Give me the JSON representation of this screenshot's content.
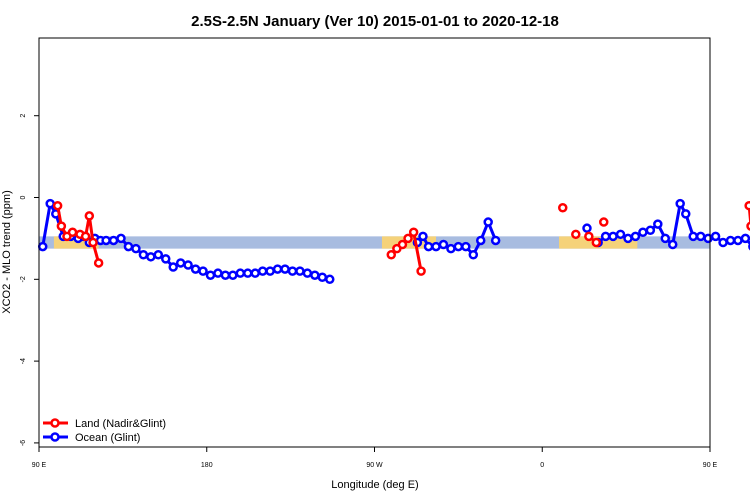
{
  "chart_data": {
    "type": "line",
    "title": "2.5S-2.5N January (Ver 10)   2015-01-01 to 2020-12-18",
    "xlabel": "Longitude (deg E)",
    "ylabel": "XCO2 - MLO trend (ppm)",
    "xlim": [
      90,
      450
    ],
    "ylim": [
      -6.1,
      3.9
    ],
    "x_ticks": [
      {
        "value": 90,
        "label": "90 E"
      },
      {
        "value": 180,
        "label": "180"
      },
      {
        "value": 270,
        "label": "90 W"
      },
      {
        "value": 360,
        "label": "0"
      },
      {
        "value": 450,
        "label": "90 E"
      },
      {
        "value": 540,
        "label": "180"
      }
    ],
    "y_ticks": [
      {
        "value": -6,
        "label": "-6"
      },
      {
        "value": -4,
        "label": "-4"
      },
      {
        "value": -2,
        "label": "-2"
      },
      {
        "value": 0,
        "label": "0"
      },
      {
        "value": 2,
        "label": "2"
      }
    ],
    "legend": {
      "position": "bottom-left",
      "entries": [
        {
          "label": "Land (Nadir&Glint)",
          "color": "#ff0000"
        },
        {
          "label": "Ocean (Glint)",
          "color": "#0000ff"
        }
      ]
    },
    "background_band": {
      "y_range": [
        -1.25,
        -0.95
      ],
      "ocean_color": "#a8bce0",
      "land_color": "#f5d27a",
      "land_ranges": [
        [
          98,
          122
        ],
        [
          274,
          303
        ],
        [
          369,
          411
        ],
        [
          474,
          489
        ]
      ]
    },
    "series": [
      {
        "name": "Land (Nadir&Glint)",
        "color": "#ff0000",
        "segments": [
          [
            [
              100,
              -0.2
            ],
            [
              102,
              -0.7
            ],
            [
              105,
              -0.95
            ],
            [
              108,
              -0.85
            ],
            [
              112,
              -0.9
            ],
            [
              115,
              -0.95
            ],
            [
              117,
              -0.45
            ],
            [
              119,
              -1.1
            ],
            [
              122,
              -1.6
            ]
          ],
          [
            [
              279,
              -1.4
            ],
            [
              282,
              -1.25
            ],
            [
              285,
              -1.15
            ],
            [
              288,
              -1.0
            ],
            [
              291,
              -0.85
            ],
            [
              295,
              -1.8
            ]
          ],
          [
            [
              371,
              -0.25
            ]
          ],
          [
            [
              378,
              -0.9
            ]
          ],
          [
            [
              385,
              -0.95
            ],
            [
              389,
              -1.1
            ]
          ],
          [
            [
              393,
              -0.6
            ]
          ],
          [
            [
              471,
              -0.2
            ],
            [
              472,
              -0.7
            ],
            [
              475,
              -0.95
            ],
            [
              479,
              -0.85
            ],
            [
              483,
              -0.9
            ],
            [
              485,
              -0.95
            ],
            [
              486,
              -0.45
            ],
            [
              488,
              -1.1
            ],
            [
              490,
              -1.6
            ]
          ]
        ]
      },
      {
        "name": "Ocean (Glint)",
        "color": "#0000ff",
        "segments": [
          [
            [
              92,
              -1.2
            ],
            [
              96,
              -0.15
            ],
            [
              99,
              -0.4
            ],
            [
              103,
              -0.95
            ],
            [
              107,
              -0.95
            ],
            [
              111,
              -1.0
            ],
            [
              114,
              -0.95
            ],
            [
              117,
              -1.1
            ],
            [
              120,
              -1.0
            ],
            [
              123,
              -1.05
            ],
            [
              126,
              -1.05
            ],
            [
              130,
              -1.05
            ],
            [
              134,
              -1.0
            ],
            [
              138,
              -1.2
            ],
            [
              142,
              -1.25
            ],
            [
              146,
              -1.4
            ],
            [
              150,
              -1.45
            ],
            [
              154,
              -1.4
            ],
            [
              158,
              -1.5
            ],
            [
              162,
              -1.7
            ],
            [
              166,
              -1.6
            ],
            [
              170,
              -1.65
            ],
            [
              174,
              -1.75
            ],
            [
              178,
              -1.8
            ],
            [
              182,
              -1.9
            ],
            [
              186,
              -1.85
            ],
            [
              190,
              -1.9
            ],
            [
              194,
              -1.9
            ],
            [
              198,
              -1.85
            ],
            [
              202,
              -1.85
            ],
            [
              206,
              -1.85
            ],
            [
              210,
              -1.8
            ],
            [
              214,
              -1.8
            ],
            [
              218,
              -1.75
            ],
            [
              222,
              -1.75
            ],
            [
              226,
              -1.8
            ],
            [
              230,
              -1.8
            ],
            [
              234,
              -1.85
            ],
            [
              238,
              -1.9
            ],
            [
              242,
              -1.95
            ],
            [
              246,
              -2.0
            ]
          ],
          [
            [
              293,
              -1.1
            ],
            [
              296,
              -0.95
            ],
            [
              299,
              -1.2
            ],
            [
              303,
              -1.2
            ],
            [
              307,
              -1.15
            ],
            [
              311,
              -1.25
            ],
            [
              315,
              -1.2
            ],
            [
              319,
              -1.2
            ],
            [
              323,
              -1.4
            ],
            [
              327,
              -1.05
            ],
            [
              331,
              -0.6
            ],
            [
              335,
              -1.05
            ]
          ],
          [
            [
              384,
              -0.75
            ]
          ],
          [
            [
              390,
              -1.1
            ],
            [
              394,
              -0.95
            ],
            [
              398,
              -0.95
            ],
            [
              402,
              -0.9
            ],
            [
              406,
              -1.0
            ],
            [
              410,
              -0.95
            ],
            [
              414,
              -0.85
            ],
            [
              418,
              -0.8
            ],
            [
              422,
              -0.65
            ],
            [
              426,
              -1.0
            ],
            [
              430,
              -1.15
            ],
            [
              434,
              -0.15
            ],
            [
              437,
              -0.4
            ],
            [
              441,
              -0.95
            ],
            [
              445,
              -0.95
            ],
            [
              449,
              -1.0
            ],
            [
              453,
              -0.95
            ],
            [
              457,
              -1.1
            ],
            [
              461,
              -1.05
            ],
            [
              465,
              -1.05
            ],
            [
              469,
              -1.0
            ],
            [
              473,
              -1.2
            ],
            [
              477,
              -1.25
            ],
            [
              481,
              -1.4
            ],
            [
              485,
              -1.45
            ],
            [
              489,
              -1.4
            ]
          ]
        ]
      }
    ]
  }
}
